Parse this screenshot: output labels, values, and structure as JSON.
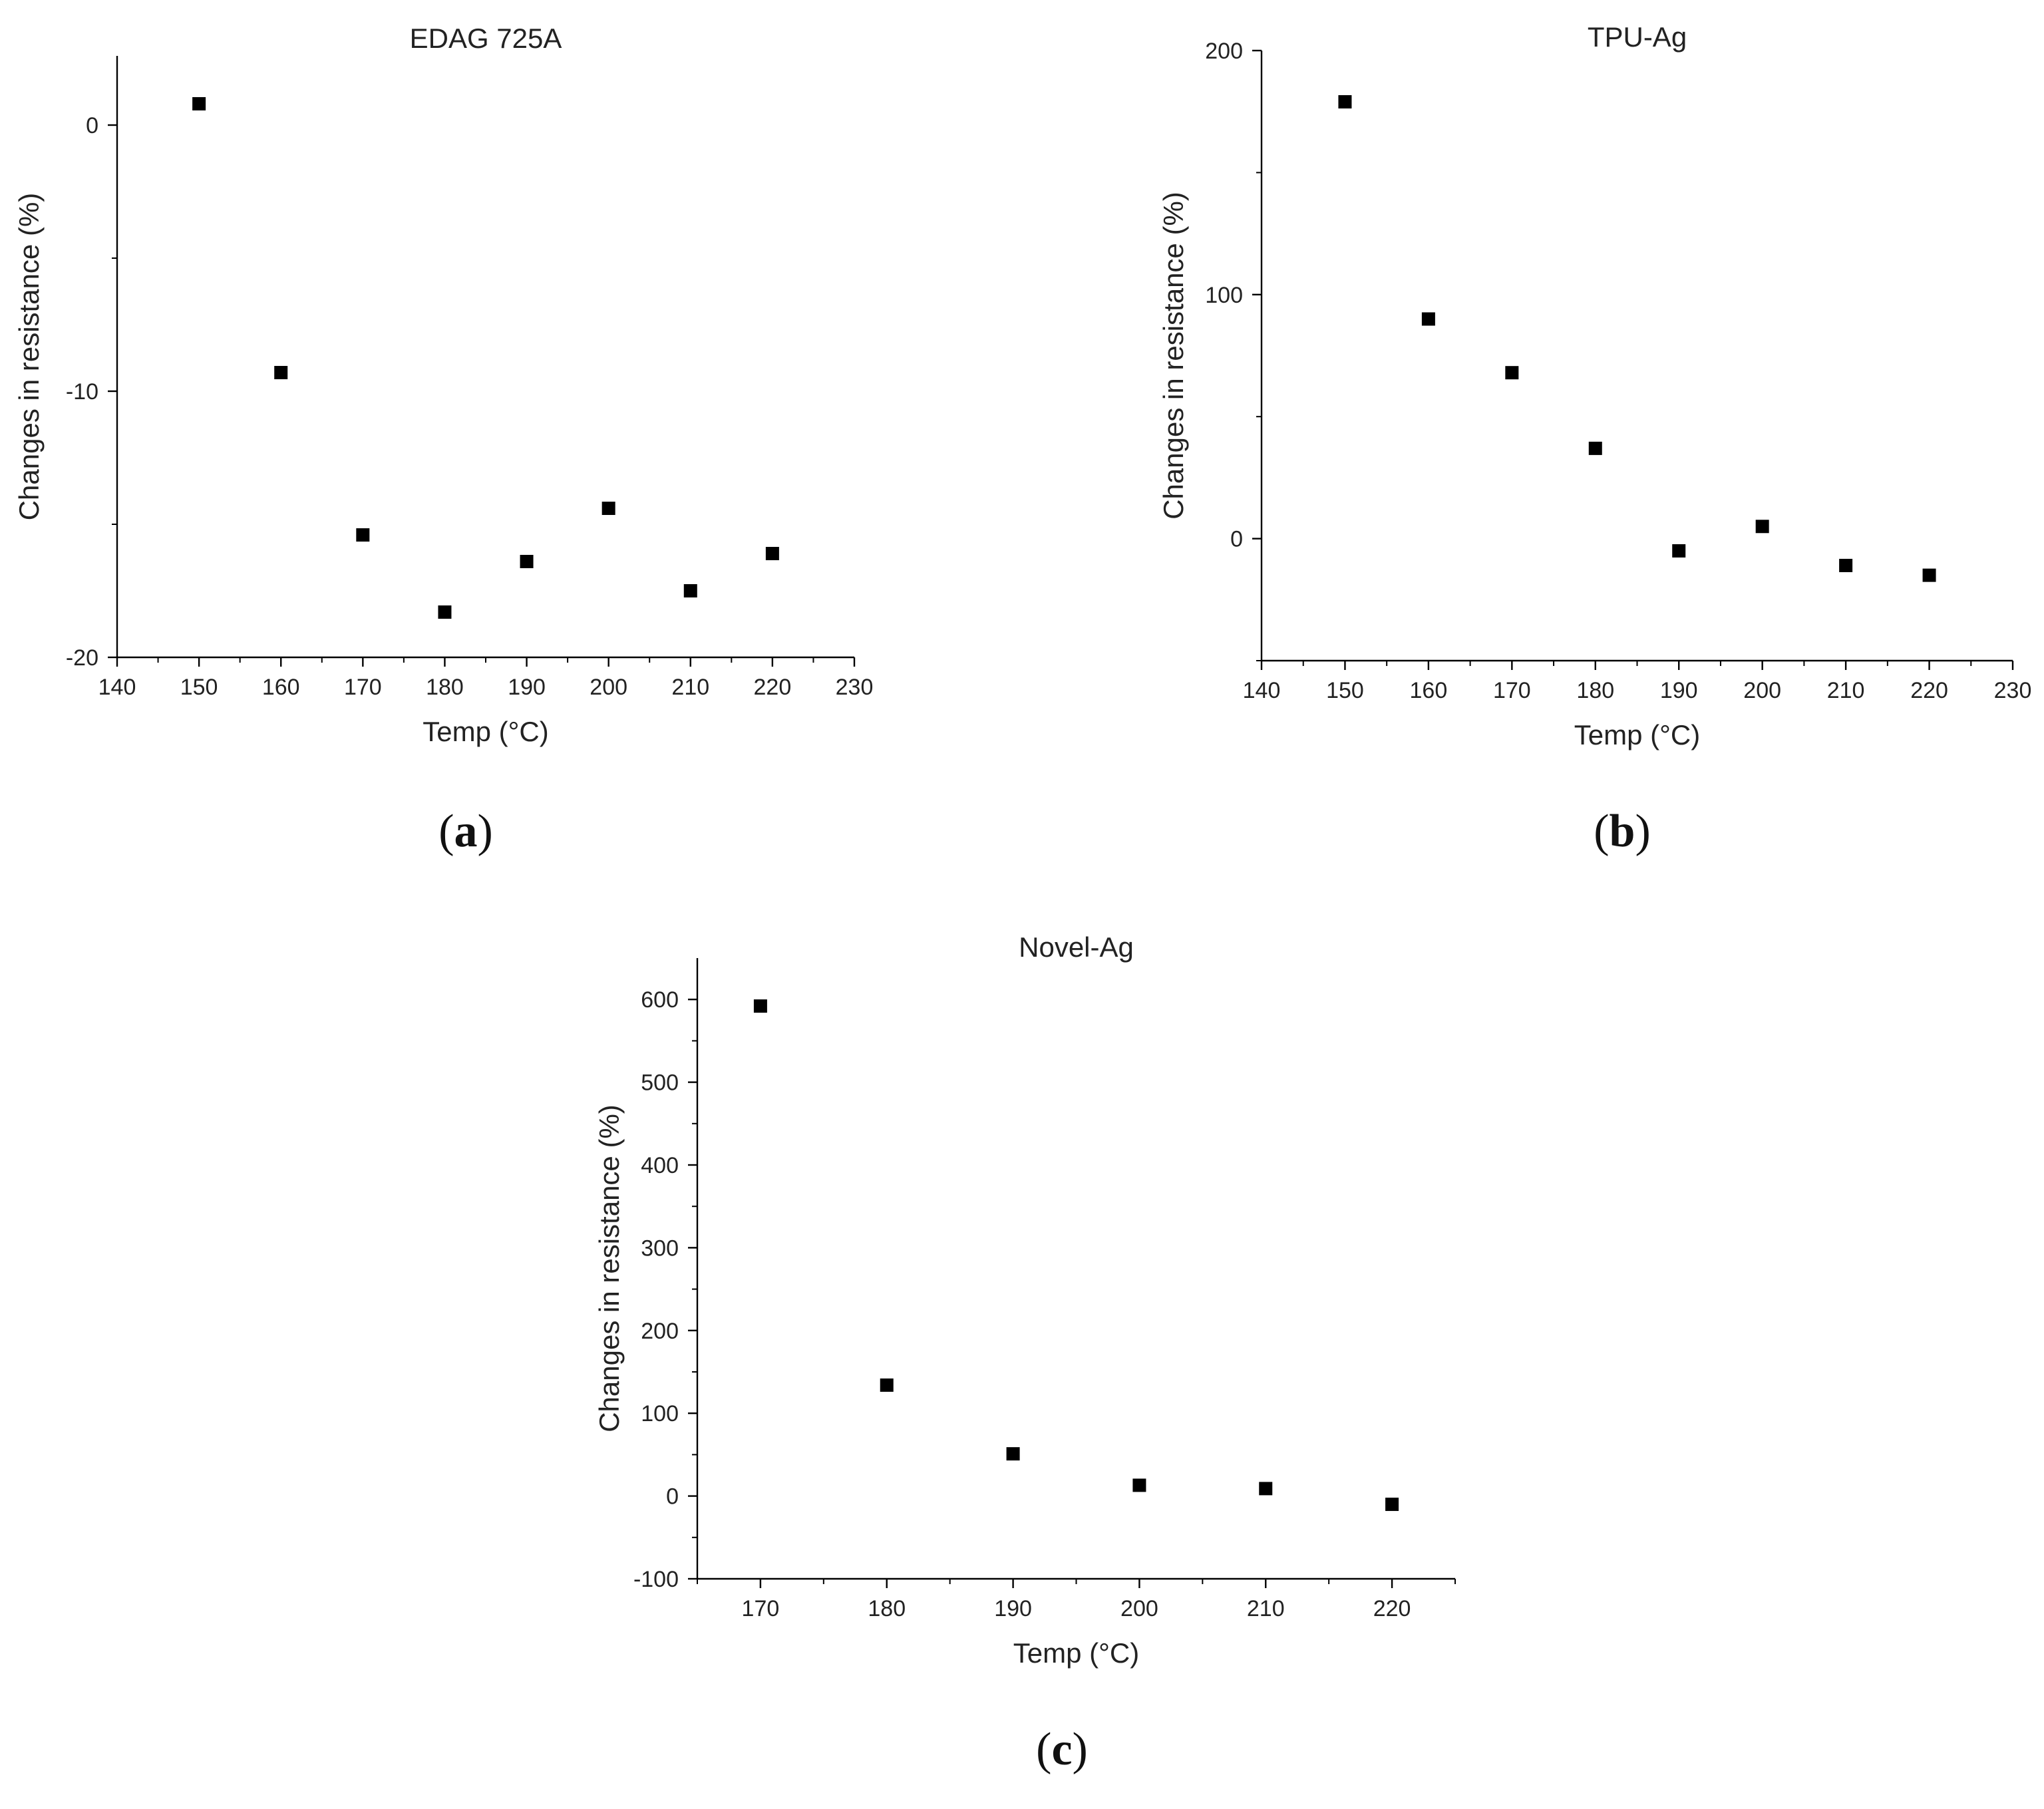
{
  "chart_data": [
    {
      "type": "scatter",
      "panel": "(a)",
      "panel_letter": "a",
      "title": "EDAG 725A",
      "xlabel": "Temp (°C)",
      "ylabel": "Changes in resistance (%)",
      "xlim": [
        140,
        230
      ],
      "ylim": [
        -20,
        2.6
      ],
      "xticks": [
        140,
        150,
        160,
        170,
        180,
        190,
        200,
        210,
        220,
        230
      ],
      "yticks": [
        -20,
        -10,
        0
      ],
      "yminor": [
        -15,
        -5
      ],
      "x": [
        150,
        160,
        170,
        180,
        190,
        200,
        210,
        220
      ],
      "y": [
        0.8,
        -9.3,
        -15.4,
        -18.3,
        -16.4,
        -14.4,
        -17.5,
        -16.1
      ]
    },
    {
      "type": "scatter",
      "panel": "(b)",
      "panel_letter": "b",
      "title": "TPU-Ag",
      "xlabel": "Temp (°C)",
      "ylabel": "Changes in resistance (%)",
      "xlim": [
        140,
        230
      ],
      "ylim": [
        -50,
        200
      ],
      "xticks": [
        140,
        150,
        160,
        170,
        180,
        190,
        200,
        210,
        220,
        230
      ],
      "yticks": [
        0,
        100,
        200
      ],
      "yminor": [
        -50,
        50,
        150
      ],
      "x": [
        150,
        160,
        170,
        180,
        190,
        200,
        210,
        220
      ],
      "y": [
        179,
        90,
        68,
        37,
        -5,
        5,
        -11,
        -15
      ]
    },
    {
      "type": "scatter",
      "panel": "(c)",
      "panel_letter": "c",
      "title": "Novel-Ag",
      "xlabel": "Temp (°C)",
      "ylabel": "Changes in resistance (%)",
      "xlim": [
        165,
        225
      ],
      "ylim": [
        -100,
        650
      ],
      "xticks": [
        170,
        180,
        190,
        200,
        210,
        220
      ],
      "xminor": [
        165,
        175,
        185,
        195,
        205,
        215,
        225
      ],
      "yticks": [
        -100,
        0,
        100,
        200,
        300,
        400,
        500,
        600
      ],
      "yminor": [
        -50,
        50,
        150,
        250,
        350,
        450,
        550
      ],
      "x": [
        170,
        180,
        190,
        200,
        210,
        220
      ],
      "y": [
        592,
        134,
        51,
        13,
        9,
        -10
      ]
    }
  ]
}
